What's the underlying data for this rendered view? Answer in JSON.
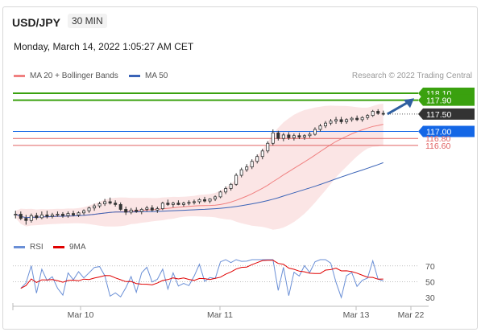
{
  "header": {
    "symbol": "USD/JPY",
    "timeframe": "30 MIN",
    "datetime": "Monday, March 14, 2022 1:05:27 AM CET",
    "credit": "Research © 2022 Trading Central"
  },
  "legend": {
    "ma20": "MA 20 + Bollinger Bands",
    "ma50": "MA 50",
    "rsi": "RSI",
    "rsi_ma": "9MA"
  },
  "colors": {
    "candle": "#333333",
    "ma20": "#f08080",
    "bollinger": "#f9d3d3",
    "ma50": "#3a63b7",
    "resistance": "#3aa10f",
    "support": "#e06060",
    "pivot": "#1467e6",
    "last": "#333333",
    "arrow": "#2f5fa0",
    "rsi": "#6a8fd6",
    "rsi_ma": "#e00000"
  },
  "chart_data": [
    {
      "type": "candlestick",
      "x_ticks": [
        "Mar 10",
        "Mar 11",
        "Mar 13",
        "Mar 22"
      ],
      "ylim": [
        114.1,
        118.4
      ],
      "levels": [
        {
          "label": "118.10",
          "value": 118.1,
          "role": "resistance"
        },
        {
          "label": "117.90",
          "value": 117.9,
          "role": "resistance"
        },
        {
          "label": "117.50",
          "value": 117.5,
          "role": "last"
        },
        {
          "label": "117.00",
          "value": 117.0,
          "role": "pivot"
        },
        {
          "label": "116.80",
          "value": 116.8,
          "role": "support"
        },
        {
          "label": "116.60",
          "value": 116.6,
          "role": "support"
        }
      ],
      "candles": [
        [
          114.6,
          114.72,
          114.5,
          114.62
        ],
        [
          114.62,
          114.7,
          114.45,
          114.5
        ],
        [
          114.5,
          114.6,
          114.32,
          114.44
        ],
        [
          114.44,
          114.64,
          114.38,
          114.58
        ],
        [
          114.58,
          114.66,
          114.46,
          114.52
        ],
        [
          114.52,
          114.7,
          114.48,
          114.6
        ],
        [
          114.6,
          114.72,
          114.5,
          114.56
        ],
        [
          114.56,
          114.66,
          114.5,
          114.6
        ],
        [
          114.6,
          114.7,
          114.55,
          114.62
        ],
        [
          114.62,
          114.68,
          114.52,
          114.58
        ],
        [
          114.58,
          114.7,
          114.52,
          114.64
        ],
        [
          114.64,
          114.72,
          114.56,
          114.6
        ],
        [
          114.6,
          114.7,
          114.54,
          114.66
        ],
        [
          114.66,
          114.76,
          114.6,
          114.72
        ],
        [
          114.72,
          114.84,
          114.66,
          114.8
        ],
        [
          114.8,
          114.92,
          114.72,
          114.86
        ],
        [
          114.86,
          114.98,
          114.8,
          114.92
        ],
        [
          114.92,
          115.06,
          114.86,
          114.98
        ],
        [
          114.98,
          115.1,
          114.9,
          114.94
        ],
        [
          114.94,
          115.02,
          114.84,
          114.9
        ],
        [
          114.9,
          114.96,
          114.72,
          114.76
        ],
        [
          114.76,
          114.84,
          114.6,
          114.68
        ],
        [
          114.68,
          114.8,
          114.62,
          114.74
        ],
        [
          114.74,
          114.82,
          114.66,
          114.7
        ],
        [
          114.7,
          114.8,
          114.62,
          114.76
        ],
        [
          114.76,
          114.86,
          114.7,
          114.8
        ],
        [
          114.8,
          114.88,
          114.7,
          114.74
        ],
        [
          114.74,
          114.84,
          114.66,
          114.78
        ],
        [
          114.78,
          114.98,
          114.74,
          114.94
        ],
        [
          114.94,
          115.04,
          114.86,
          114.9
        ],
        [
          114.9,
          114.98,
          114.82,
          114.94
        ],
        [
          114.94,
          115.02,
          114.88,
          114.9
        ],
        [
          114.9,
          114.98,
          114.84,
          114.94
        ],
        [
          114.94,
          115.02,
          114.88,
          114.96
        ],
        [
          114.96,
          115.04,
          114.9,
          114.98
        ],
        [
          114.98,
          115.08,
          114.92,
          115.04
        ],
        [
          115.04,
          115.12,
          114.96,
          115.0
        ],
        [
          115.0,
          115.08,
          114.94,
          115.06
        ],
        [
          115.06,
          115.16,
          115.0,
          115.12
        ],
        [
          115.12,
          115.3,
          115.08,
          115.26
        ],
        [
          115.26,
          115.42,
          115.2,
          115.36
        ],
        [
          115.36,
          115.52,
          115.3,
          115.48
        ],
        [
          115.48,
          115.8,
          115.44,
          115.74
        ],
        [
          115.74,
          115.96,
          115.68,
          115.9
        ],
        [
          115.9,
          116.06,
          115.84,
          115.98
        ],
        [
          115.98,
          116.2,
          115.92,
          116.14
        ],
        [
          116.14,
          116.34,
          116.08,
          116.28
        ],
        [
          116.28,
          116.5,
          116.2,
          116.44
        ],
        [
          116.44,
          116.72,
          116.38,
          116.66
        ],
        [
          116.66,
          117.06,
          116.6,
          116.96
        ],
        [
          116.96,
          117.02,
          116.74,
          116.8
        ],
        [
          116.8,
          116.96,
          116.72,
          116.9
        ],
        [
          116.9,
          116.98,
          116.76,
          116.82
        ],
        [
          116.82,
          116.94,
          116.74,
          116.88
        ],
        [
          116.88,
          116.96,
          116.78,
          116.84
        ],
        [
          116.84,
          116.92,
          116.76,
          116.88
        ],
        [
          116.88,
          116.98,
          116.82,
          116.92
        ],
        [
          116.92,
          117.12,
          116.88,
          117.06
        ],
        [
          117.06,
          117.22,
          117.0,
          117.16
        ],
        [
          117.16,
          117.3,
          117.1,
          117.24
        ],
        [
          117.24,
          117.36,
          117.18,
          117.3
        ],
        [
          117.3,
          117.42,
          117.22,
          117.34
        ],
        [
          117.34,
          117.42,
          117.22,
          117.28
        ],
        [
          117.28,
          117.38,
          117.22,
          117.34
        ],
        [
          117.34,
          117.42,
          117.28,
          117.38
        ],
        [
          117.38,
          117.46,
          117.3,
          117.34
        ],
        [
          117.34,
          117.44,
          117.28,
          117.4
        ],
        [
          117.4,
          117.5,
          117.34,
          117.46
        ],
        [
          117.46,
          117.62,
          117.42,
          117.58
        ],
        [
          117.58,
          117.64,
          117.48,
          117.52
        ],
        [
          117.52,
          117.6,
          117.46,
          117.5
        ]
      ]
    },
    {
      "type": "line",
      "series": [
        {
          "name": "RSI"
        },
        {
          "name": "9MA"
        }
      ],
      "y_ticks": [
        70,
        50,
        30
      ],
      "ylim": [
        25,
        80
      ]
    }
  ]
}
